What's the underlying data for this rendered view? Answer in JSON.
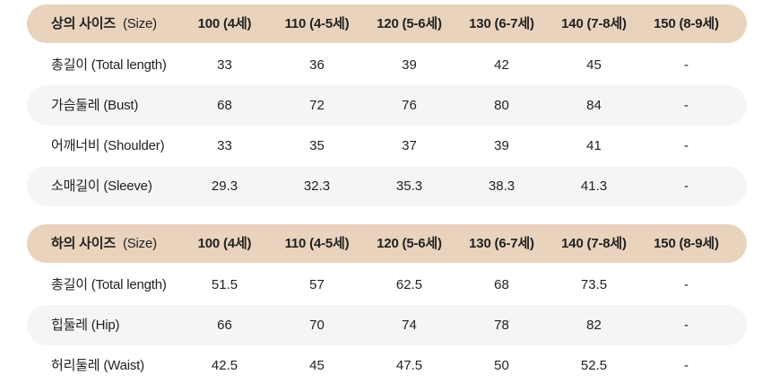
{
  "colors": {
    "page_background": "#ffffff",
    "header_row_bg": "#e9d3bd",
    "alt_row_bg": "#f5f5f5",
    "text": "#222222"
  },
  "tables": [
    {
      "header": {
        "title_ko": "상의 사이즈",
        "title_en": "(Size)",
        "columns": [
          "100 (4세)",
          "110 (4-5세)",
          "120 (5-6세)",
          "130 (6-7세)",
          "140 (7-8세)",
          "150 (8-9세)"
        ]
      },
      "rows": [
        {
          "label": "총길이 (Total length)",
          "values": [
            "33",
            "36",
            "39",
            "42",
            "45",
            "-"
          ]
        },
        {
          "label": "가슴둘레 (Bust)",
          "values": [
            "68",
            "72",
            "76",
            "80",
            "84",
            "-"
          ]
        },
        {
          "label": "어깨너비 (Shoulder)",
          "values": [
            "33",
            "35",
            "37",
            "39",
            "41",
            "-"
          ]
        },
        {
          "label": "소매길이 (Sleeve)",
          "values": [
            "29.3",
            "32.3",
            "35.3",
            "38.3",
            "41.3",
            "-"
          ]
        }
      ]
    },
    {
      "header": {
        "title_ko": "하의 사이즈",
        "title_en": "(Size)",
        "columns": [
          "100 (4세)",
          "110 (4-5세)",
          "120 (5-6세)",
          "130 (6-7세)",
          "140 (7-8세)",
          "150 (8-9세)"
        ]
      },
      "rows": [
        {
          "label": "총길이 (Total length)",
          "values": [
            "51.5",
            "57",
            "62.5",
            "68",
            "73.5",
            "-"
          ]
        },
        {
          "label": "힙둘레 (Hip)",
          "values": [
            "66",
            "70",
            "74",
            "78",
            "82",
            "-"
          ]
        },
        {
          "label": "허리둘레 (Waist)",
          "values": [
            "42.5",
            "45",
            "47.5",
            "50",
            "52.5",
            "-"
          ]
        }
      ]
    }
  ]
}
